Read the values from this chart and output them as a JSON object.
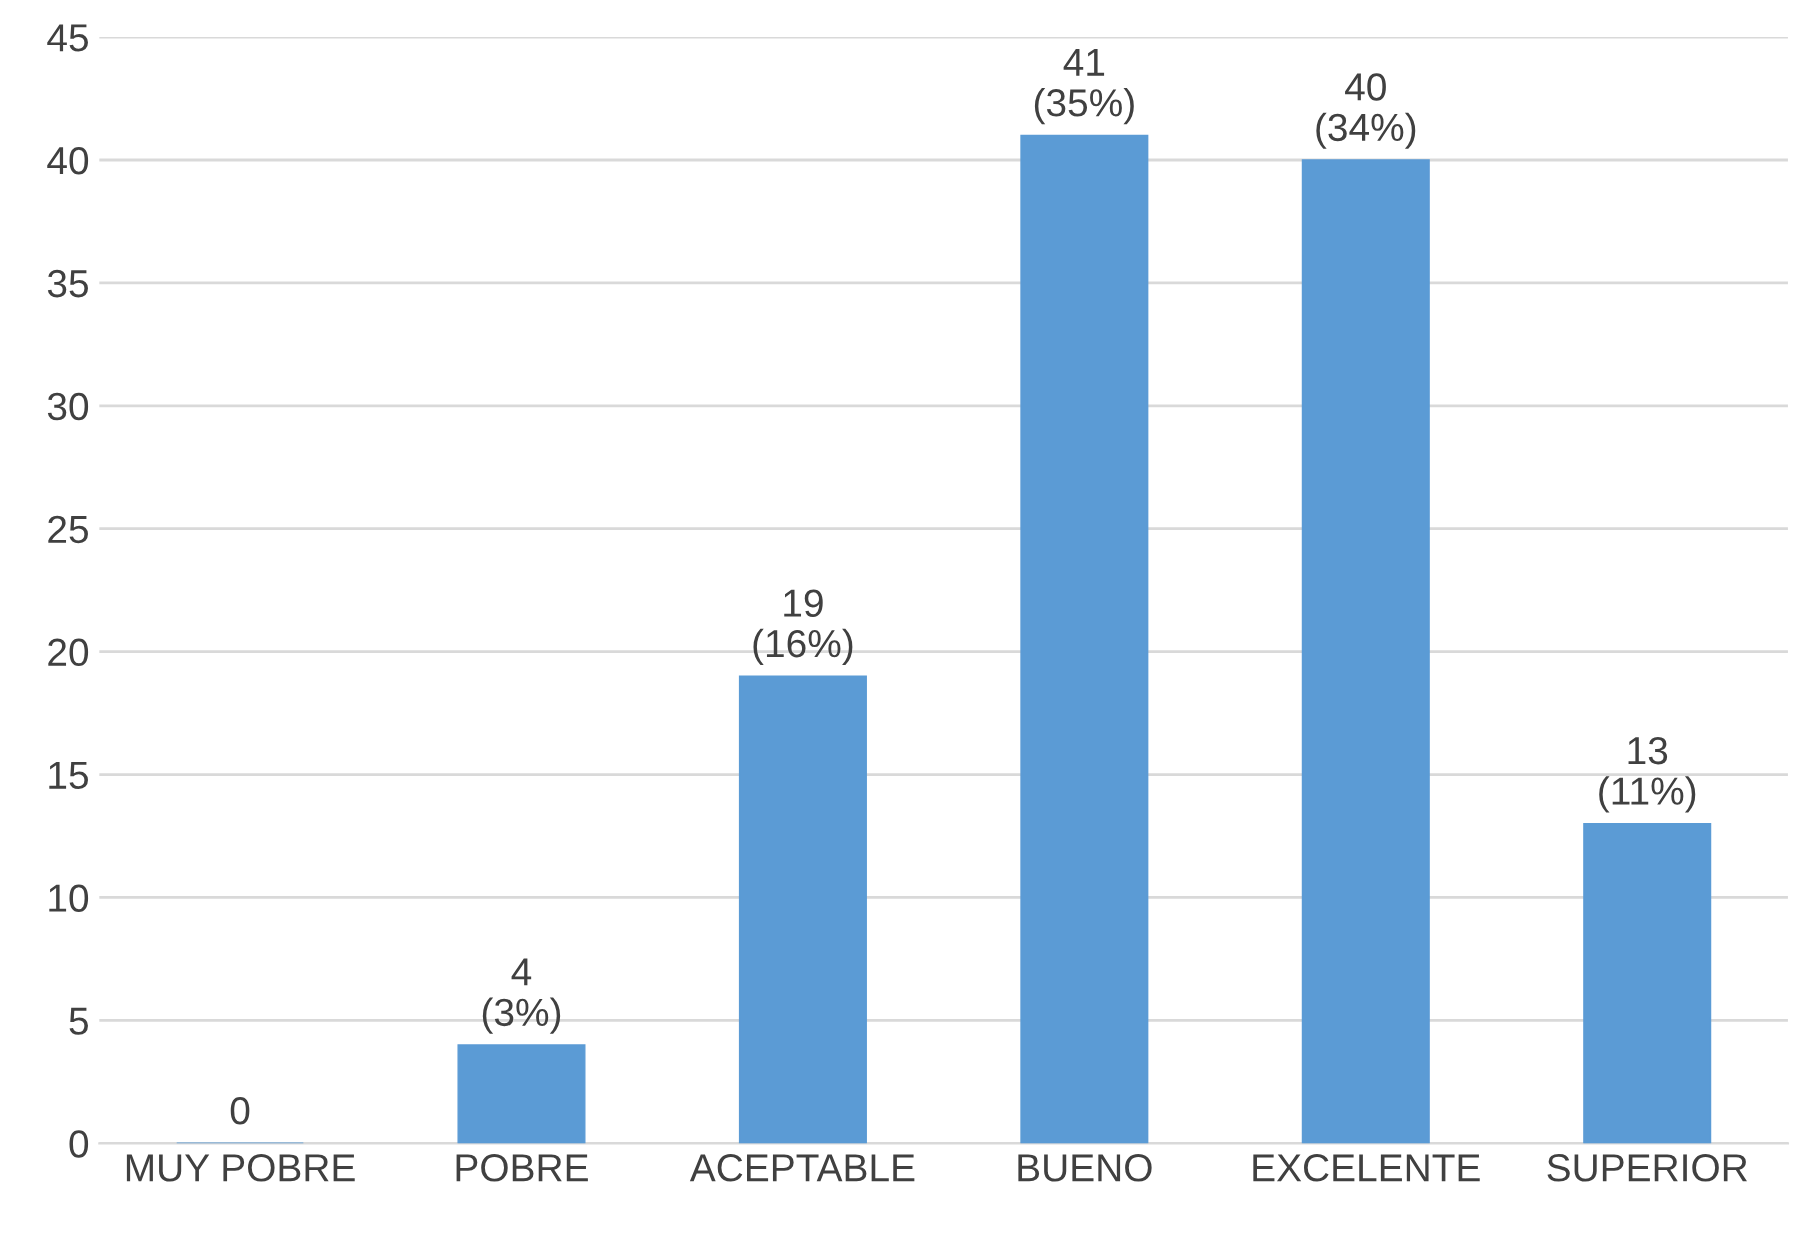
{
  "chart_data": {
    "type": "bar",
    "categories": [
      "MUY POBRE",
      "POBRE",
      "ACEPTABLE",
      "BUENO",
      "EXCELENTE",
      "SUPERIOR"
    ],
    "values": [
      0,
      4,
      19,
      41,
      40,
      13
    ],
    "value_labels": [
      "0",
      "4\n(3%)",
      "19\n(16%)",
      "41\n(35%)",
      "40\n(34%)",
      "13\n(11%)"
    ],
    "color": "#5b9bd5",
    "ylim": [
      0,
      45
    ],
    "yticks": [
      0,
      5,
      10,
      15,
      20,
      25,
      30,
      35,
      40,
      45
    ],
    "grid": "y",
    "legend": false
  }
}
